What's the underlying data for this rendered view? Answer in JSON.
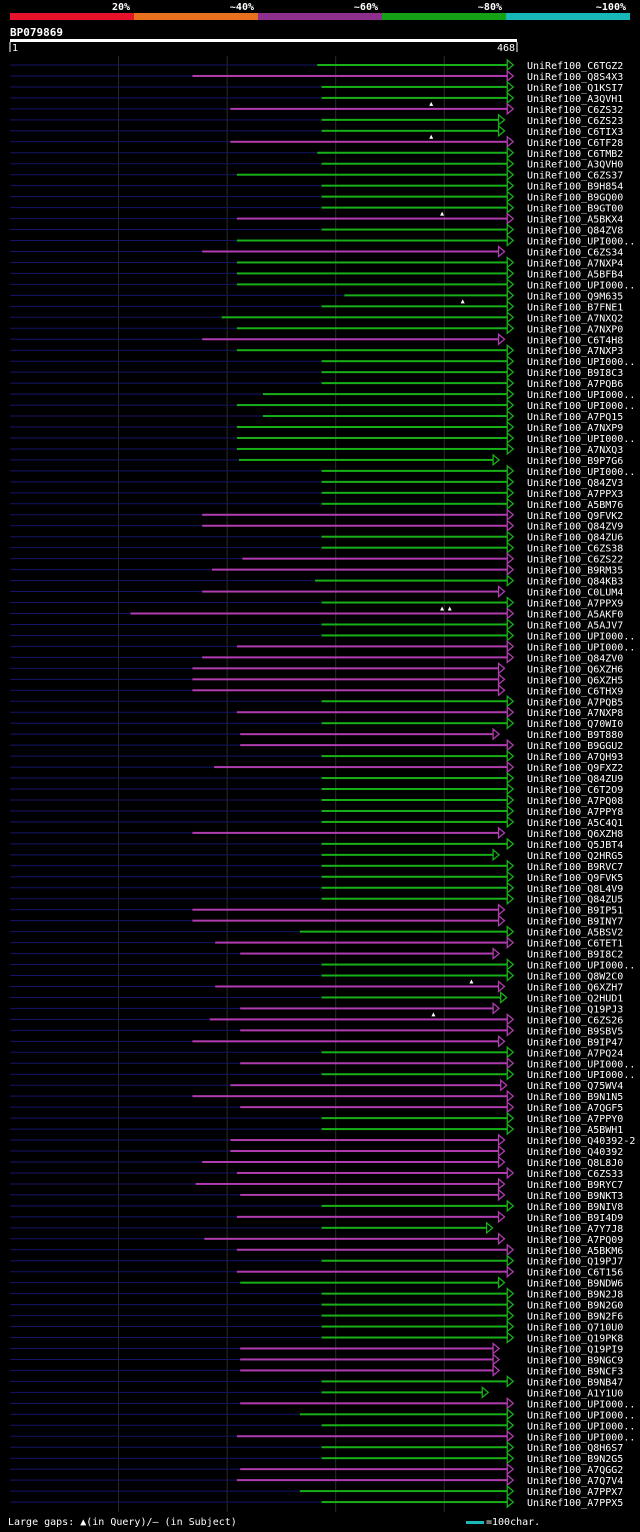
{
  "chart_data": {
    "type": "alignment",
    "title": "BP079869",
    "query_start": "1",
    "query_end": "468",
    "identity_legend": [
      {
        "label": "20%",
        "color": "#e8122a"
      },
      {
        "label": "~40%",
        "color": "#e8701e"
      },
      {
        "label": "~60%",
        "color": "#8e2f8e"
      },
      {
        "label": "~80%",
        "color": "#15a115"
      },
      {
        "label": "~100%",
        "color": "#19b8b8"
      }
    ],
    "colors": {
      "green": "#18b018",
      "purple": "#b03cb0",
      "query_line": "#141468"
    },
    "rows": [
      {
        "name": "UniRef100_C6TGZ2",
        "start": 284,
        "end": 459,
        "c": "g",
        "mq": []
      },
      {
        "name": "UniRef100_Q8S4X3",
        "start": 169,
        "end": 459,
        "c": "p",
        "mq": []
      },
      {
        "name": "UniRef100_Q1KSI7",
        "start": 288,
        "end": 459,
        "c": "g",
        "mq": []
      },
      {
        "name": "UniRef100_A3QVH1",
        "start": 288,
        "end": 459,
        "c": "g",
        "mq": []
      },
      {
        "name": "UniRef100_C6ZS32",
        "start": 204,
        "end": 459,
        "c": "p",
        "mq": [
          389
        ]
      },
      {
        "name": "UniRef100_C6ZS23",
        "start": 288,
        "end": 451,
        "c": "g",
        "mq": []
      },
      {
        "name": "UniRef100_C6TIX3",
        "start": 288,
        "end": 451,
        "c": "g",
        "mq": []
      },
      {
        "name": "UniRef100_C6TF28",
        "start": 204,
        "end": 459,
        "c": "p",
        "mq": [
          389
        ]
      },
      {
        "name": "UniRef100_C6TMB2",
        "start": 284,
        "end": 459,
        "c": "g",
        "mq": []
      },
      {
        "name": "UniRef100_A3QVH0",
        "start": 288,
        "end": 459,
        "c": "g",
        "mq": []
      },
      {
        "name": "UniRef100_C6ZS37",
        "start": 210,
        "end": 459,
        "c": "g",
        "mq": []
      },
      {
        "name": "UniRef100_B9H854",
        "start": 288,
        "end": 459,
        "c": "g",
        "mq": []
      },
      {
        "name": "UniRef100_B9GQ00",
        "start": 288,
        "end": 459,
        "c": "g",
        "mq": []
      },
      {
        "name": "UniRef100_B9GT00",
        "start": 288,
        "end": 459,
        "c": "g",
        "mq": []
      },
      {
        "name": "UniRef100_A5BKX4",
        "start": 210,
        "end": 459,
        "c": "p",
        "mq": [
          399
        ]
      },
      {
        "name": "UniRef100_Q84ZV8",
        "start": 288,
        "end": 459,
        "c": "g",
        "mq": []
      },
      {
        "name": "UniRef100_UPI000..",
        "start": 210,
        "end": 459,
        "c": "g",
        "mq": []
      },
      {
        "name": "UniRef100_C6ZS34",
        "start": 178,
        "end": 451,
        "c": "p",
        "mq": []
      },
      {
        "name": "UniRef100_A7NXP4",
        "start": 210,
        "end": 459,
        "c": "g",
        "mq": []
      },
      {
        "name": "UniRef100_A5BFB4",
        "start": 210,
        "end": 459,
        "c": "g",
        "mq": []
      },
      {
        "name": "UniRef100_UPI000..",
        "start": 210,
        "end": 459,
        "c": "g",
        "mq": []
      },
      {
        "name": "UniRef100_Q9M635",
        "start": 309,
        "end": 459,
        "c": "g",
        "mq": []
      },
      {
        "name": "UniRef100_B7FNE1",
        "start": 288,
        "end": 459,
        "c": "g",
        "mq": [
          418
        ]
      },
      {
        "name": "UniRef100_A7NXQ2",
        "start": 196,
        "end": 459,
        "c": "g",
        "mq": []
      },
      {
        "name": "UniRef100_A7NXP0",
        "start": 210,
        "end": 459,
        "c": "g",
        "mq": []
      },
      {
        "name": "UniRef100_C6T4H8",
        "start": 178,
        "end": 451,
        "c": "p",
        "mq": []
      },
      {
        "name": "UniRef100_A7NXP3",
        "start": 210,
        "end": 459,
        "c": "g",
        "mq": []
      },
      {
        "name": "UniRef100_UPI000..",
        "start": 288,
        "end": 459,
        "c": "g",
        "mq": []
      },
      {
        "name": "UniRef100_B9I8C3",
        "start": 288,
        "end": 459,
        "c": "g",
        "mq": []
      },
      {
        "name": "UniRef100_A7PQB6",
        "start": 288,
        "end": 459,
        "c": "g",
        "mq": []
      },
      {
        "name": "UniRef100_UPI000..",
        "start": 234,
        "end": 459,
        "c": "g",
        "mq": []
      },
      {
        "name": "UniRef100_UPI000..",
        "start": 210,
        "end": 459,
        "c": "g",
        "mq": []
      },
      {
        "name": "UniRef100_A7PQ15",
        "start": 234,
        "end": 459,
        "c": "g",
        "mq": []
      },
      {
        "name": "UniRef100_A7NXP9",
        "start": 210,
        "end": 459,
        "c": "g",
        "mq": []
      },
      {
        "name": "UniRef100_UPI000..",
        "start": 210,
        "end": 459,
        "c": "g",
        "mq": []
      },
      {
        "name": "UniRef100_A7NXQ3",
        "start": 210,
        "end": 459,
        "c": "g",
        "mq": []
      },
      {
        "name": "UniRef100_B9P7G6",
        "start": 212,
        "end": 446,
        "c": "g",
        "mq": []
      },
      {
        "name": "UniRef100_UPI000..",
        "start": 288,
        "end": 459,
        "c": "g",
        "mq": []
      },
      {
        "name": "UniRef100_Q84ZV3",
        "start": 288,
        "end": 459,
        "c": "g",
        "mq": []
      },
      {
        "name": "UniRef100_A7PPX3",
        "start": 288,
        "end": 459,
        "c": "g",
        "mq": []
      },
      {
        "name": "UniRef100_A5BM76",
        "start": 288,
        "end": 459,
        "c": "g",
        "mq": []
      },
      {
        "name": "UniRef100_Q9FVK2",
        "start": 178,
        "end": 459,
        "c": "p",
        "mq": []
      },
      {
        "name": "UniRef100_Q84ZV9",
        "start": 178,
        "end": 459,
        "c": "p",
        "mq": []
      },
      {
        "name": "UniRef100_Q84ZU6",
        "start": 288,
        "end": 459,
        "c": "g",
        "mq": []
      },
      {
        "name": "UniRef100_C6ZS38",
        "start": 288,
        "end": 459,
        "c": "g",
        "mq": []
      },
      {
        "name": "UniRef100_C6ZS22",
        "start": 215,
        "end": 459,
        "c": "p",
        "mq": []
      },
      {
        "name": "UniRef100_B9RM35",
        "start": 187,
        "end": 459,
        "c": "p",
        "mq": []
      },
      {
        "name": "UniRef100_Q84KB3",
        "start": 282,
        "end": 459,
        "c": "g",
        "mq": []
      },
      {
        "name": "UniRef100_C0LUM4",
        "start": 178,
        "end": 451,
        "c": "p",
        "mq": []
      },
      {
        "name": "UniRef100_A7PPX9",
        "start": 288,
        "end": 459,
        "c": "g",
        "mq": []
      },
      {
        "name": "UniRef100_A5AKF0",
        "start": 112,
        "end": 459,
        "c": "p",
        "mq": [
          399,
          406
        ]
      },
      {
        "name": "UniRef100_A5AJV7",
        "start": 288,
        "end": 459,
        "c": "g",
        "mq": []
      },
      {
        "name": "UniRef100_UPI000..",
        "start": 288,
        "end": 459,
        "c": "g",
        "mq": []
      },
      {
        "name": "UniRef100_UPI000..",
        "start": 210,
        "end": 459,
        "c": "p",
        "mq": []
      },
      {
        "name": "UniRef100_Q84ZV0",
        "start": 178,
        "end": 459,
        "c": "p",
        "mq": []
      },
      {
        "name": "UniRef100_Q6XZH6",
        "start": 169,
        "end": 451,
        "c": "p",
        "mq": []
      },
      {
        "name": "UniRef100_Q6XZH5",
        "start": 169,
        "end": 451,
        "c": "p",
        "mq": []
      },
      {
        "name": "UniRef100_C6THX9",
        "start": 169,
        "end": 451,
        "c": "p",
        "mq": []
      },
      {
        "name": "UniRef100_A7PQB5",
        "start": 288,
        "end": 459,
        "c": "g",
        "mq": []
      },
      {
        "name": "UniRef100_A7NXP8",
        "start": 210,
        "end": 459,
        "c": "p",
        "mq": []
      },
      {
        "name": "UniRef100_Q70WI0",
        "start": 288,
        "end": 459,
        "c": "g",
        "mq": []
      },
      {
        "name": "UniRef100_B9T880",
        "start": 213,
        "end": 446,
        "c": "p",
        "mq": []
      },
      {
        "name": "UniRef100_B9GGU2",
        "start": 213,
        "end": 459,
        "c": "p",
        "mq": []
      },
      {
        "name": "UniRef100_A7QH93",
        "start": 288,
        "end": 459,
        "c": "g",
        "mq": []
      },
      {
        "name": "UniRef100_Q9FXZ2",
        "start": 189,
        "end": 459,
        "c": "p",
        "mq": []
      },
      {
        "name": "UniRef100_Q84ZU9",
        "start": 288,
        "end": 459,
        "c": "g",
        "mq": []
      },
      {
        "name": "UniRef100_C6T2O9",
        "start": 288,
        "end": 459,
        "c": "g",
        "mq": []
      },
      {
        "name": "UniRef100_A7PQ08",
        "start": 288,
        "end": 459,
        "c": "g",
        "mq": []
      },
      {
        "name": "UniRef100_A7PPY8",
        "start": 288,
        "end": 459,
        "c": "g",
        "mq": []
      },
      {
        "name": "UniRef100_A5C4Q1",
        "start": 288,
        "end": 459,
        "c": "g",
        "mq": []
      },
      {
        "name": "UniRef100_Q6XZH8",
        "start": 169,
        "end": 451,
        "c": "p",
        "mq": []
      },
      {
        "name": "UniRef100_Q5JBT4",
        "start": 288,
        "end": 459,
        "c": "g",
        "mq": []
      },
      {
        "name": "UniRef100_Q2HRG5",
        "start": 288,
        "end": 446,
        "c": "g",
        "mq": []
      },
      {
        "name": "UniRef100_B9RVC7",
        "start": 288,
        "end": 459,
        "c": "g",
        "mq": []
      },
      {
        "name": "UniRef100_Q9FVK5",
        "start": 288,
        "end": 459,
        "c": "g",
        "mq": []
      },
      {
        "name": "UniRef100_Q8L4V9",
        "start": 288,
        "end": 459,
        "c": "g",
        "mq": []
      },
      {
        "name": "UniRef100_Q84ZU5",
        "start": 288,
        "end": 459,
        "c": "g",
        "mq": []
      },
      {
        "name": "UniRef100_B9IP51",
        "start": 169,
        "end": 451,
        "c": "p",
        "mq": []
      },
      {
        "name": "UniRef100_B9INY7",
        "start": 169,
        "end": 451,
        "c": "p",
        "mq": []
      },
      {
        "name": "UniRef100_A5BSV2",
        "start": 268,
        "end": 459,
        "c": "g",
        "mq": []
      },
      {
        "name": "UniRef100_C6TET1",
        "start": 190,
        "end": 459,
        "c": "p",
        "mq": []
      },
      {
        "name": "UniRef100_B9I8C2",
        "start": 213,
        "end": 446,
        "c": "p",
        "mq": []
      },
      {
        "name": "UniRef100_UPI000..",
        "start": 288,
        "end": 459,
        "c": "g",
        "mq": []
      },
      {
        "name": "UniRef100_Q8W2C0",
        "start": 288,
        "end": 459,
        "c": "g",
        "mq": []
      },
      {
        "name": "UniRef100_Q6XZH7",
        "start": 190,
        "end": 451,
        "c": "p",
        "mq": [
          426
        ]
      },
      {
        "name": "UniRef100_Q2HUD1",
        "start": 288,
        "end": 453,
        "c": "g",
        "mq": []
      },
      {
        "name": "UniRef100_Q19PJ3",
        "start": 213,
        "end": 446,
        "c": "p",
        "mq": []
      },
      {
        "name": "UniRef100_C6ZS26",
        "start": 185,
        "end": 459,
        "c": "p",
        "mq": [
          391
        ]
      },
      {
        "name": "UniRef100_B9SBV5",
        "start": 213,
        "end": 459,
        "c": "p",
        "mq": []
      },
      {
        "name": "UniRef100_B9IP47",
        "start": 169,
        "end": 451,
        "c": "p",
        "mq": []
      },
      {
        "name": "UniRef100_A7PQ24",
        "start": 288,
        "end": 459,
        "c": "g",
        "mq": []
      },
      {
        "name": "UniRef100_UPI000..",
        "start": 213,
        "end": 459,
        "c": "p",
        "mq": []
      },
      {
        "name": "UniRef100_UPI000..",
        "start": 288,
        "end": 459,
        "c": "g",
        "mq": []
      },
      {
        "name": "UniRef100_Q75WV4",
        "start": 204,
        "end": 453,
        "c": "p",
        "mq": []
      },
      {
        "name": "UniRef100_B9N1N5",
        "start": 169,
        "end": 459,
        "c": "p",
        "mq": []
      },
      {
        "name": "UniRef100_A7QGF5",
        "start": 213,
        "end": 459,
        "c": "p",
        "mq": []
      },
      {
        "name": "UniRef100_A7PPY0",
        "start": 288,
        "end": 459,
        "c": "g",
        "mq": []
      },
      {
        "name": "UniRef100_A5BWH1",
        "start": 288,
        "end": 459,
        "c": "g",
        "mq": []
      },
      {
        "name": "UniRef100_Q40392-2",
        "start": 204,
        "end": 451,
        "c": "p",
        "mq": []
      },
      {
        "name": "UniRef100_Q40392",
        "start": 204,
        "end": 451,
        "c": "p",
        "mq": []
      },
      {
        "name": "UniRef100_Q8L8J0",
        "start": 178,
        "end": 451,
        "c": "p",
        "mq": []
      },
      {
        "name": "UniRef100_C6ZS33",
        "start": 210,
        "end": 459,
        "c": "p",
        "mq": []
      },
      {
        "name": "UniRef100_B9RYC7",
        "start": 172,
        "end": 451,
        "c": "p",
        "mq": []
      },
      {
        "name": "UniRef100_B9NKT3",
        "start": 213,
        "end": 451,
        "c": "p",
        "mq": []
      },
      {
        "name": "UniRef100_B9NIV8",
        "start": 288,
        "end": 459,
        "c": "g",
        "mq": []
      },
      {
        "name": "UniRef100_B9I4D9",
        "start": 210,
        "end": 451,
        "c": "p",
        "mq": []
      },
      {
        "name": "UniRef100_A7Y7J8",
        "start": 288,
        "end": 440,
        "c": "g",
        "mq": []
      },
      {
        "name": "UniRef100_A7PQ09",
        "start": 180,
        "end": 451,
        "c": "p",
        "mq": []
      },
      {
        "name": "UniRef100_A5BKM6",
        "start": 210,
        "end": 459,
        "c": "p",
        "mq": []
      },
      {
        "name": "UniRef100_Q19PJ7",
        "start": 288,
        "end": 459,
        "c": "g",
        "mq": []
      },
      {
        "name": "UniRef100_C6T156",
        "start": 210,
        "end": 459,
        "c": "p",
        "mq": []
      },
      {
        "name": "UniRef100_B9NDW6",
        "start": 213,
        "end": 451,
        "c": "g",
        "mq": []
      },
      {
        "name": "UniRef100_B9N2J8",
        "start": 288,
        "end": 459,
        "c": "g",
        "mq": []
      },
      {
        "name": "UniRef100_B9N2G0",
        "start": 288,
        "end": 459,
        "c": "g",
        "mq": []
      },
      {
        "name": "UniRef100_B9N2F6",
        "start": 288,
        "end": 459,
        "c": "g",
        "mq": []
      },
      {
        "name": "UniRef100_Q710U0",
        "start": 288,
        "end": 459,
        "c": "g",
        "mq": []
      },
      {
        "name": "UniRef100_Q19PK8",
        "start": 288,
        "end": 459,
        "c": "g",
        "mq": []
      },
      {
        "name": "UniRef100_Q19PI9",
        "start": 213,
        "end": 446,
        "c": "p",
        "mq": []
      },
      {
        "name": "UniRef100_B9NGC9",
        "start": 213,
        "end": 446,
        "c": "p",
        "mq": []
      },
      {
        "name": "UniRef100_B9NCF3",
        "start": 213,
        "end": 446,
        "c": "p",
        "mq": []
      },
      {
        "name": "UniRef100_B9NB47",
        "start": 288,
        "end": 459,
        "c": "g",
        "mq": []
      },
      {
        "name": "UniRef100_A1Y1U0",
        "start": 288,
        "end": 436,
        "c": "g",
        "mq": []
      },
      {
        "name": "UniRef100_UPI000..",
        "start": 213,
        "end": 459,
        "c": "p",
        "mq": []
      },
      {
        "name": "UniRef100_UPI000..",
        "start": 268,
        "end": 459,
        "c": "g",
        "mq": []
      },
      {
        "name": "UniRef100_UPI000..",
        "start": 288,
        "end": 459,
        "c": "g",
        "mq": []
      },
      {
        "name": "UniRef100_UPI000..",
        "start": 210,
        "end": 459,
        "c": "p",
        "mq": []
      },
      {
        "name": "UniRef100_Q8H6S7",
        "start": 288,
        "end": 459,
        "c": "g",
        "mq": []
      },
      {
        "name": "UniRef100_B9N2G5",
        "start": 288,
        "end": 459,
        "c": "g",
        "mq": []
      },
      {
        "name": "UniRef100_A7QGG2",
        "start": 213,
        "end": 459,
        "c": "p",
        "mq": []
      },
      {
        "name": "UniRef100_A7Q7V4",
        "start": 210,
        "end": 459,
        "c": "p",
        "mq": []
      },
      {
        "name": "UniRef100_A7PPX7",
        "start": 268,
        "end": 459,
        "c": "g",
        "mq": []
      },
      {
        "name": "UniRef100_A7PPX5",
        "start": 288,
        "end": 459,
        "c": "g",
        "mq": []
      }
    ],
    "footer_left": "Large gaps: ▲(in Query)/– (in Subject)",
    "footer_right": "=100char."
  }
}
